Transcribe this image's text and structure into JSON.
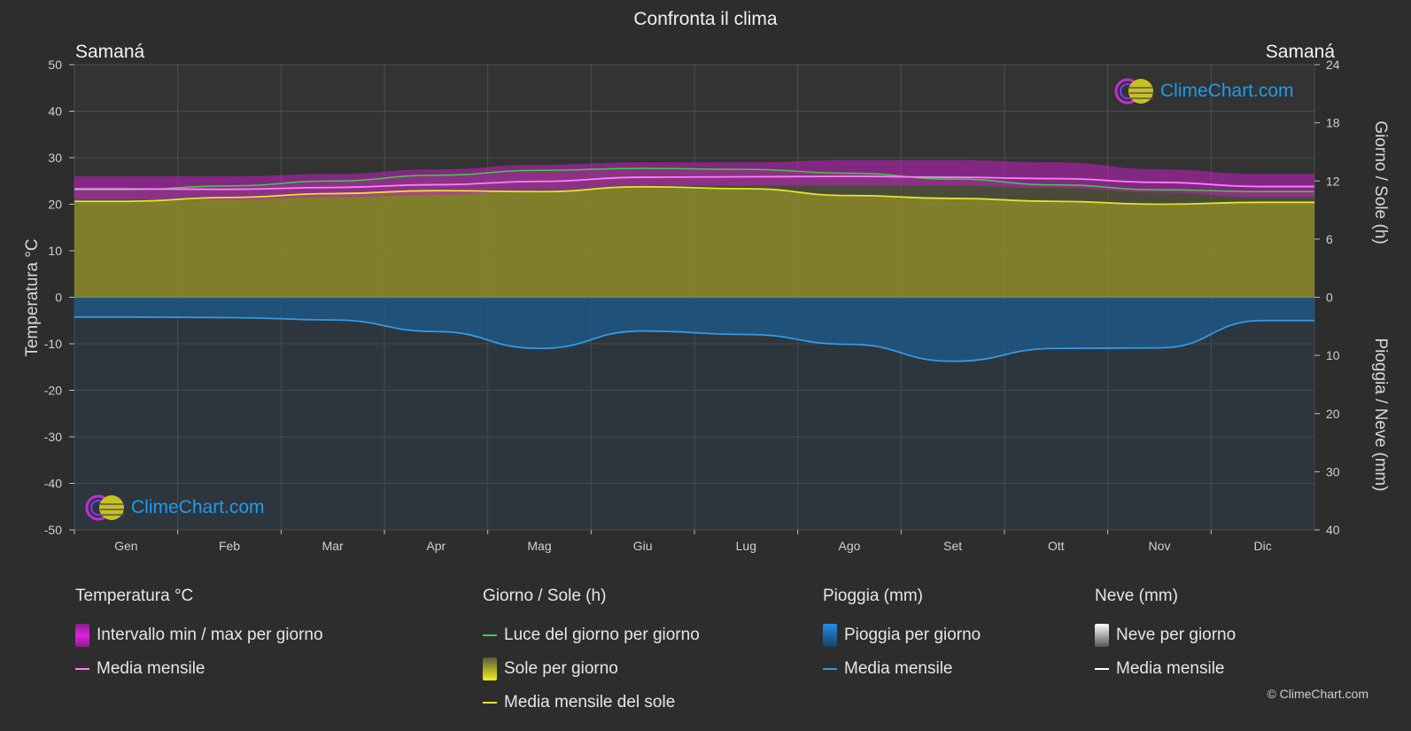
{
  "title": "Confronta il clima",
  "location_left": "Samaná",
  "location_right": "Samaná",
  "logo_text": "ClimeChart.com",
  "copyright": "© ClimeChart.com",
  "axes": {
    "left_title": "Temperatura °C",
    "right_top_title": "Giorno / Sole (h)",
    "right_bottom_title": "Pioggia / Neve (mm)"
  },
  "legend": {
    "temperature": {
      "title": "Temperatura °C",
      "items": [
        {
          "label": "Intervallo min / max per giorno",
          "swatch": "box",
          "color": "#d81bd8"
        },
        {
          "label": "Media mensile",
          "swatch": "line",
          "color": "#ff7cff"
        }
      ]
    },
    "day_sun": {
      "title": "Giorno / Sole (h)",
      "items": [
        {
          "label": "Luce del giorno per giorno",
          "swatch": "line",
          "color": "#3fcf3f"
        },
        {
          "label": "Sole per giorno",
          "swatch": "box",
          "color": "#d6d629"
        },
        {
          "label": "Media mensile del sole",
          "swatch": "line",
          "color": "#e3e32a"
        }
      ]
    },
    "rain": {
      "title": "Pioggia (mm)",
      "items": [
        {
          "label": "Pioggia per giorno",
          "swatch": "box",
          "color": "#1f86d6"
        },
        {
          "label": "Media mensile",
          "swatch": "line",
          "color": "#2f9be8"
        }
      ]
    },
    "snow": {
      "title": "Neve (mm)",
      "items": [
        {
          "label": "Neve per giorno",
          "swatch": "box",
          "color": "#d8d8d8"
        },
        {
          "label": "Media mensile",
          "swatch": "line",
          "color": "#ffffff"
        }
      ]
    }
  },
  "chart_data": {
    "type": "area",
    "categories": [
      "Gen",
      "Feb",
      "Mar",
      "Apr",
      "Mag",
      "Giu",
      "Lug",
      "Ago",
      "Set",
      "Ott",
      "Nov",
      "Dic"
    ],
    "y_left": {
      "label": "Temperatura °C",
      "min": -50,
      "max": 50,
      "ticks": [
        50,
        40,
        30,
        20,
        10,
        0,
        -10,
        -20,
        -30,
        -40,
        -50
      ]
    },
    "y_right_top": {
      "label": "Giorno / Sole (h)",
      "min": 0,
      "max": 24,
      "ticks": [
        24,
        18,
        12,
        6,
        0
      ]
    },
    "y_right_bottom": {
      "label": "Pioggia / Neve (mm)",
      "min": 0,
      "max": 40,
      "ticks": [
        0,
        10,
        20,
        30,
        40
      ]
    },
    "grid": true,
    "series": [
      {
        "name": "Luce del giorno per giorno",
        "unit": "h",
        "color": "#3fcf3f",
        "values": [
          11.1,
          11.5,
          12.0,
          12.6,
          13.1,
          13.3,
          13.2,
          12.8,
          12.2,
          11.6,
          11.1,
          10.9
        ]
      },
      {
        "name": "Media mensile",
        "unit": "°C",
        "color": "#ff7cff",
        "values": [
          23.3,
          23.2,
          23.6,
          24.2,
          24.9,
          25.8,
          25.9,
          26.0,
          25.8,
          25.5,
          24.7,
          23.8
        ]
      },
      {
        "name": "Media mensile del sole",
        "unit": "h",
        "color": "#e3e32a",
        "values": [
          9.9,
          10.3,
          10.7,
          11.0,
          10.9,
          11.4,
          11.2,
          10.5,
          10.2,
          9.9,
          9.6,
          9.8
        ]
      },
      {
        "name": "Media mensile (pioggia)",
        "unit": "mm",
        "color": "#2f9be8",
        "values": [
          3.4,
          3.5,
          3.9,
          5.9,
          8.8,
          5.8,
          6.4,
          8.1,
          11.0,
          8.8,
          8.7,
          4.0
        ]
      },
      {
        "name": "Intervallo min / max per giorno",
        "unit": "°C",
        "color": "#d81bd8",
        "min": [
          21.0,
          21.0,
          21.5,
          22.0,
          23.0,
          24.0,
          24.0,
          24.0,
          24.0,
          23.5,
          22.5,
          21.5
        ],
        "max": [
          26.0,
          26.0,
          26.5,
          27.5,
          28.5,
          29.0,
          29.0,
          29.5,
          29.5,
          29.0,
          27.5,
          26.5
        ]
      },
      {
        "name": "Neve per giorno",
        "unit": "mm",
        "color": "#d8d8d8",
        "values": [
          0,
          0,
          0,
          0,
          0,
          0,
          0,
          0,
          0,
          0,
          0,
          0
        ]
      }
    ]
  }
}
